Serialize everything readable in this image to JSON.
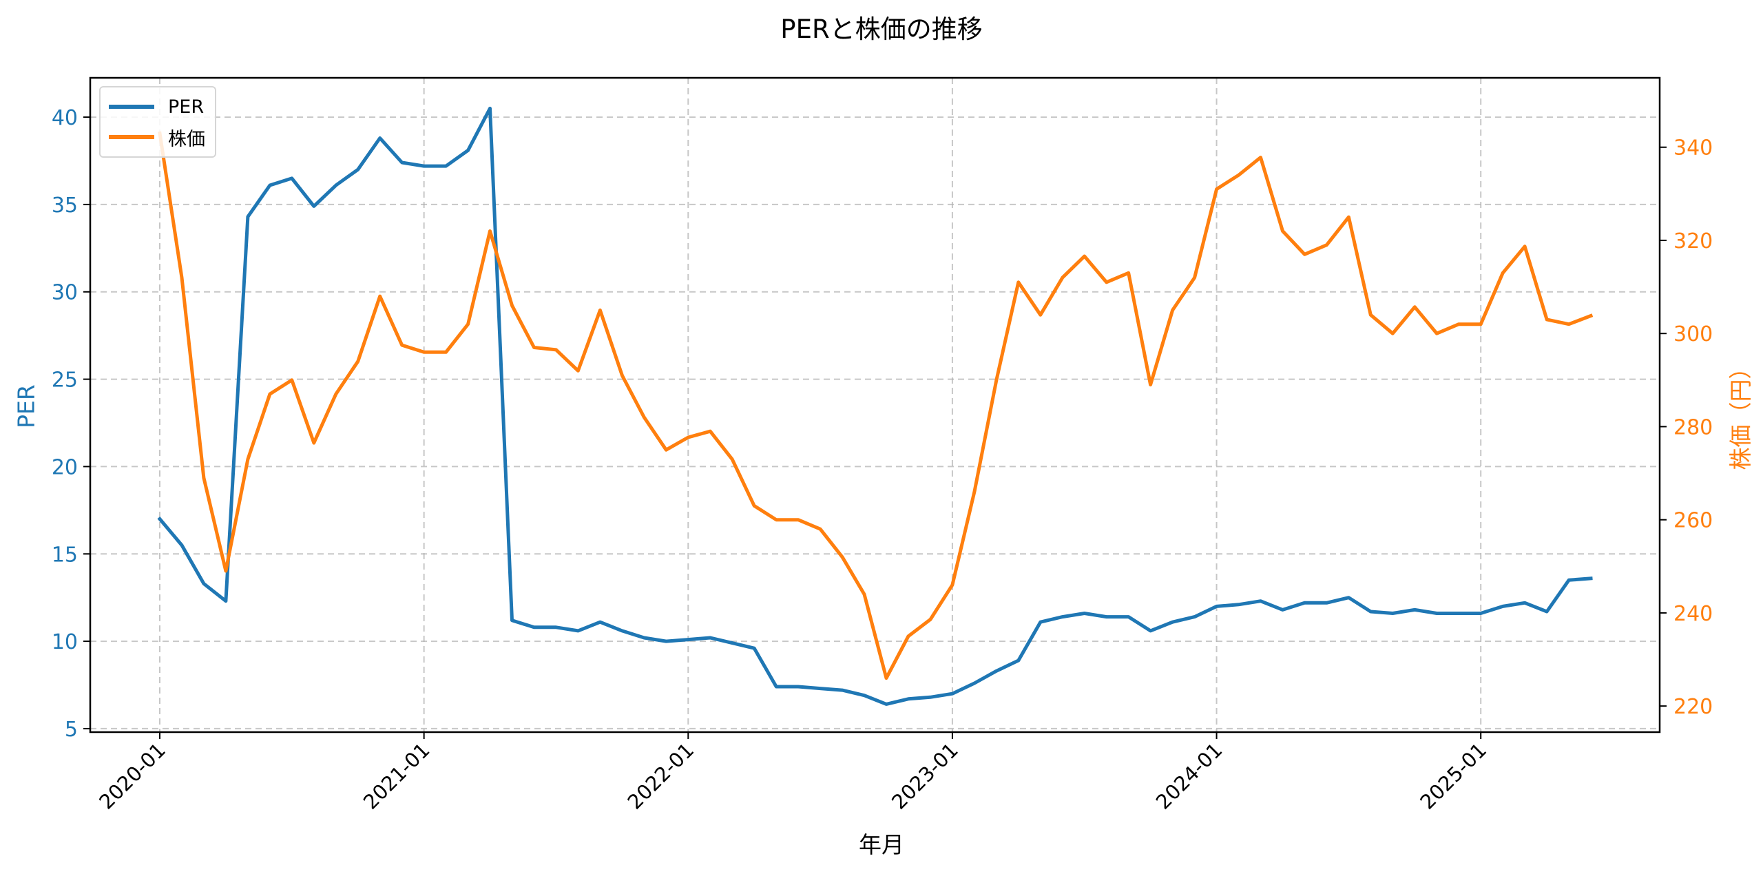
{
  "chart_data": {
    "type": "line",
    "title": "PERと株価の推移",
    "xlabel": "年月",
    "ylabel_left": "PER",
    "ylabel_right": "株価（円）",
    "x_tick_labels": [
      "2020-01",
      "2021-01",
      "2022-01",
      "2023-01",
      "2024-01",
      "2025-01"
    ],
    "y_left_ticks": [
      5,
      10,
      15,
      20,
      25,
      30,
      35,
      40
    ],
    "y_right_ticks": [
      220,
      240,
      260,
      280,
      300,
      320,
      340
    ],
    "ylim_left": [
      4.8,
      42.25
    ],
    "ylim_right": [
      214.4,
      354.9
    ],
    "grid": true,
    "legend_position": "upper left",
    "x": [
      "2020-01",
      "2020-02",
      "2020-03",
      "2020-04",
      "2020-05",
      "2020-06",
      "2020-07",
      "2020-08",
      "2020-09",
      "2020-10",
      "2020-11",
      "2020-12",
      "2021-01",
      "2021-02",
      "2021-03",
      "2021-04",
      "2021-05",
      "2021-06",
      "2021-07",
      "2021-08",
      "2021-09",
      "2021-10",
      "2021-11",
      "2021-12",
      "2022-01",
      "2022-02",
      "2022-03",
      "2022-04",
      "2022-05",
      "2022-06",
      "2022-07",
      "2022-08",
      "2022-09",
      "2022-10",
      "2022-11",
      "2022-12",
      "2023-01",
      "2023-02",
      "2023-03",
      "2023-04",
      "2023-05",
      "2023-06",
      "2023-07",
      "2023-08",
      "2023-09",
      "2023-10",
      "2023-11",
      "2023-12",
      "2024-01",
      "2024-02",
      "2024-03",
      "2024-04",
      "2024-05",
      "2024-06",
      "2024-07",
      "2024-08",
      "2024-09",
      "2024-10",
      "2024-11",
      "2024-12",
      "2025-01",
      "2025-02",
      "2025-03",
      "2025-04",
      "2025-05",
      "2025-06"
    ],
    "series": [
      {
        "name": "PER",
        "axis": "left",
        "color": "#1f77b4",
        "values": [
          17.0,
          15.5,
          13.3,
          12.3,
          34.3,
          36.1,
          36.5,
          34.9,
          36.1,
          37.0,
          38.8,
          37.4,
          37.2,
          37.2,
          38.1,
          40.5,
          11.2,
          10.8,
          10.8,
          10.6,
          11.1,
          10.6,
          10.2,
          10.0,
          10.1,
          10.2,
          9.9,
          9.6,
          7.4,
          7.4,
          7.3,
          7.2,
          6.9,
          6.4,
          6.7,
          6.8,
          7.0,
          7.6,
          8.3,
          8.9,
          11.1,
          11.4,
          11.6,
          11.4,
          11.4,
          10.6,
          11.1,
          11.4,
          12.0,
          12.1,
          12.3,
          11.8,
          12.2,
          12.2,
          12.5,
          11.7,
          11.6,
          11.8,
          11.6,
          11.6,
          11.6,
          12.0,
          12.2,
          11.7,
          13.5,
          13.6
        ]
      },
      {
        "name": "株価",
        "axis": "right",
        "color": "#ff7f0e",
        "values": [
          343,
          312,
          269,
          249,
          273,
          287,
          290,
          276.5,
          287,
          294,
          308,
          297.5,
          296,
          296,
          302,
          322,
          306,
          297,
          296.5,
          292,
          305,
          291,
          282,
          275,
          277.7,
          279,
          273,
          263,
          260,
          260,
          258,
          252,
          244,
          226,
          235,
          238.6,
          246,
          266,
          290,
          311,
          304,
          312,
          316.6,
          311,
          313,
          289,
          305,
          312,
          331,
          334,
          337.8,
          322,
          317,
          319,
          325,
          304,
          300,
          305.7,
          300,
          302,
          302,
          313,
          318.7,
          303,
          302,
          303.8
        ]
      }
    ]
  },
  "legend": {
    "items": [
      {
        "label": "PER",
        "color": "#1f77b4"
      },
      {
        "label": "株価",
        "color": "#ff7f0e"
      }
    ]
  }
}
